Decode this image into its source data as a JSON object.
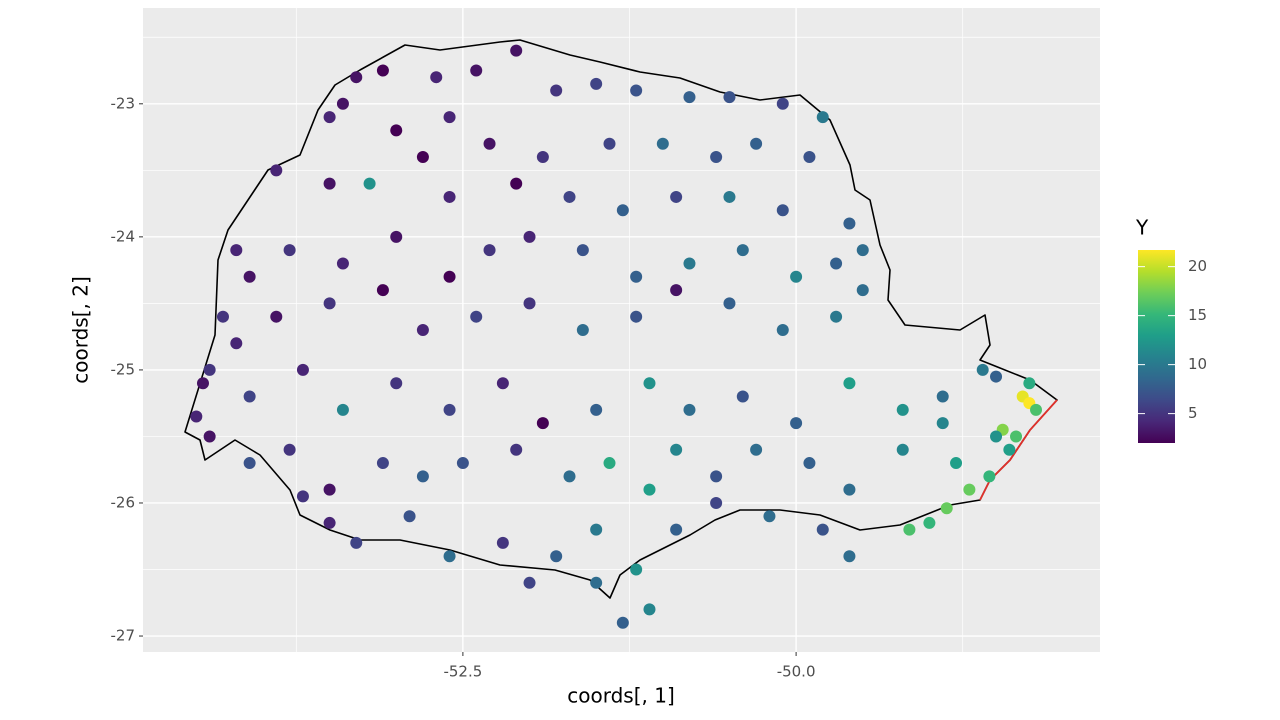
{
  "chart_data": {
    "type": "scatter",
    "x_label": "coords[, 1]",
    "y_label": "coords[, 2]",
    "xlim": [
      -54.9,
      -47.72
    ],
    "ylim": [
      -27.12,
      -22.28
    ],
    "xticks": [
      -52.5,
      {
        "value": -50,
        "label": "-50.0"
      }
    ],
    "yticks": [
      -23,
      -24,
      -25,
      -26,
      -27
    ],
    "grid": true,
    "colorbar": {
      "title": "Y",
      "lim": [
        2,
        21.7
      ],
      "ticks": [
        5,
        10,
        15,
        20
      ],
      "colormap": "viridis"
    },
    "x": [
      -52.1,
      -52.7,
      -53.1,
      -53.3,
      -52.4,
      -51.8,
      -51.5,
      -51.2,
      -50.8,
      -50.5,
      -50.1,
      -49.8,
      -53.4,
      -53.5,
      -53.0,
      -52.6,
      -52.3,
      -51.9,
      -51.4,
      -51.0,
      -50.6,
      -50.3,
      -49.9,
      -53.9,
      -53.5,
      -53.2,
      -52.8,
      -52.6,
      -52.1,
      -51.7,
      -51.3,
      -50.9,
      -50.5,
      -50.1,
      -49.6,
      -54.2,
      -54.1,
      -53.8,
      -53.4,
      -53.0,
      -52.6,
      -52.3,
      -52.0,
      -51.6,
      -51.2,
      -50.8,
      -50.4,
      -50.0,
      -49.7,
      -49.5,
      -54.3,
      -54.2,
      -53.9,
      -53.5,
      -53.1,
      -52.8,
      -52.4,
      -52.0,
      -51.6,
      -51.2,
      -50.9,
      -50.5,
      -50.1,
      -49.7,
      -49.5,
      -54.45,
      -54.4,
      -54.1,
      -53.7,
      -53.4,
      -53.0,
      -52.6,
      -52.2,
      -51.9,
      -51.5,
      -51.1,
      -50.8,
      -50.4,
      -50.0,
      -49.6,
      -49.2,
      -48.9,
      -48.6,
      -48.3,
      -48.25,
      -48.5,
      -48.2,
      -48.25,
      -48.45,
      -48.5,
      -48.9,
      -54.5,
      -54.4,
      -54.1,
      -53.8,
      -53.5,
      -53.1,
      -52.8,
      -52.5,
      -52.1,
      -51.7,
      -51.4,
      -51.1,
      -50.9,
      -50.6,
      -50.3,
      -49.9,
      -49.6,
      -49.2,
      -48.8,
      -48.7,
      -48.55,
      -48.4,
      -48.35,
      -48.87,
      -53.7,
      -53.5,
      -53.3,
      -52.9,
      -52.6,
      -52.2,
      -51.8,
      -51.5,
      -51.2,
      -50.9,
      -50.6,
      -50.2,
      -49.8,
      -49.6,
      -49.15,
      -49.0,
      -51.5,
      -51.1,
      -51.3,
      -52.0
    ],
    "y": [
      -22.6,
      -22.8,
      -22.75,
      -22.8,
      -22.75,
      -22.9,
      -22.85,
      -22.9,
      -22.95,
      -22.95,
      -23.0,
      -23.1,
      -23.0,
      -23.1,
      -23.2,
      -23.1,
      -23.3,
      -23.4,
      -23.3,
      -23.3,
      -23.4,
      -23.3,
      -23.4,
      -23.5,
      -23.6,
      -23.6,
      -23.4,
      -23.7,
      -23.6,
      -23.7,
      -23.8,
      -23.7,
      -23.7,
      -23.8,
      -23.9,
      -24.1,
      -24.3,
      -24.1,
      -24.2,
      -24.0,
      -24.3,
      -24.1,
      -24.0,
      -24.1,
      -24.3,
      -24.2,
      -24.1,
      -24.3,
      -24.2,
      -24.1,
      -24.6,
      -24.8,
      -24.6,
      -24.5,
      -24.4,
      -24.7,
      -24.6,
      -24.5,
      -24.7,
      -24.6,
      -24.4,
      -24.5,
      -24.7,
      -24.6,
      -24.4,
      -25.1,
      -25.0,
      -25.2,
      -25.0,
      -25.3,
      -25.1,
      -25.3,
      -25.1,
      -25.4,
      -25.3,
      -25.1,
      -25.3,
      -25.2,
      -25.4,
      -25.1,
      -25.3,
      -25.2,
      -25.0,
      -25.2,
      -25.25,
      -25.05,
      -25.3,
      -25.1,
      -25.45,
      -25.5,
      -25.4,
      -25.35,
      -25.5,
      -25.7,
      -25.6,
      -25.9,
      -25.7,
      -25.8,
      -25.7,
      -25.6,
      -25.8,
      -25.7,
      -25.9,
      -25.6,
      -25.8,
      -25.6,
      -25.7,
      -25.9,
      -25.6,
      -25.7,
      -25.9,
      -25.8,
      -25.6,
      -25.5,
      -26.04,
      -25.95,
      -26.15,
      -26.3,
      -26.1,
      -26.4,
      -26.3,
      -26.4,
      -26.2,
      -26.5,
      -26.2,
      -26.0,
      -26.1,
      -26.2,
      -26.4,
      -26.2,
      -26.15,
      -26.6,
      -26.8,
      -26.9,
      -26.6
    ],
    "values": [
      3,
      4,
      2,
      3,
      3,
      5,
      6,
      7,
      8,
      7,
      6,
      10,
      3,
      4,
      2,
      4,
      3,
      5,
      6,
      9,
      7,
      8,
      7,
      4,
      3,
      12,
      2,
      4,
      2,
      6,
      8,
      6,
      10,
      7,
      8,
      4,
      3,
      5,
      4,
      3,
      2,
      5,
      4,
      7,
      8,
      10,
      9,
      11,
      8,
      9,
      5,
      4,
      3,
      5,
      2,
      4,
      6,
      5,
      9,
      7,
      3,
      8,
      9,
      10,
      9,
      3,
      5,
      6,
      4,
      11,
      5,
      6,
      4,
      2,
      8,
      12,
      9,
      7,
      8,
      13,
      12,
      9,
      10,
      21,
      22,
      8,
      16,
      14,
      18,
      12,
      11,
      4,
      3,
      7,
      5,
      3,
      6,
      8,
      7,
      5,
      9,
      14,
      13,
      11,
      7,
      9,
      8,
      9,
      11,
      13,
      17,
      15,
      13,
      16,
      17,
      5,
      4,
      6,
      7,
      9,
      5,
      8,
      10,
      12,
      8,
      6,
      9,
      7,
      9,
      16,
      15,
      9,
      11,
      8,
      6
    ]
  }
}
